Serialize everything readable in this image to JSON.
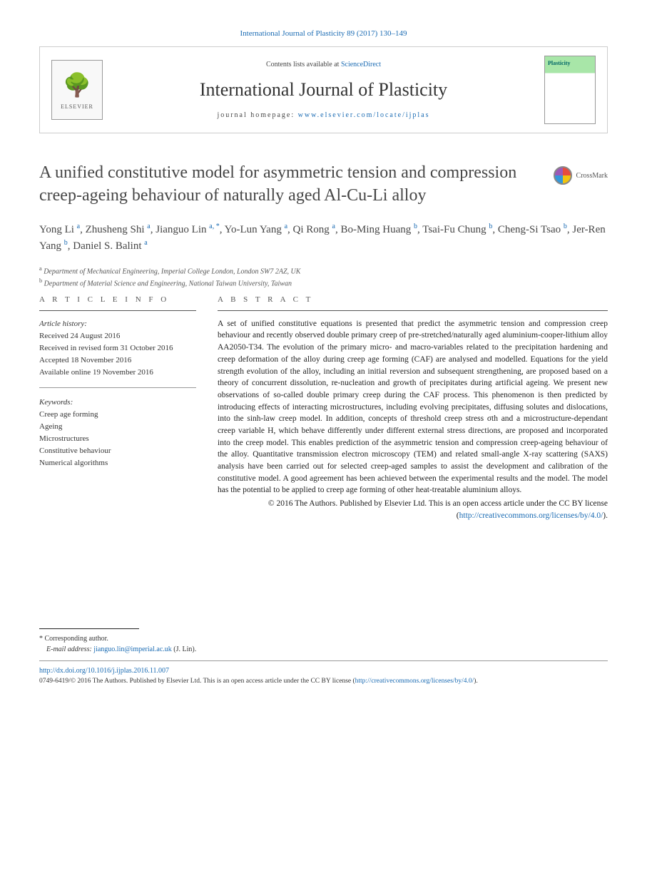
{
  "header": {
    "citation": "International Journal of Plasticity 89 (2017) 130–149",
    "contents_prefix": "Contents lists available at ",
    "contents_link": "ScienceDirect",
    "journal_title": "International Journal of Plasticity",
    "homepage_prefix": "journal homepage: ",
    "homepage_url": "www.elsevier.com/locate/ijplas",
    "elsevier_label": "ELSEVIER",
    "cover_label": "Plasticity"
  },
  "article": {
    "title": "A unified constitutive model for asymmetric tension and compression creep-ageing behaviour of naturally aged Al-Cu-Li alloy",
    "crossmark_label": "CrossMark"
  },
  "authors": [
    {
      "name": "Yong Li",
      "aff": "a"
    },
    {
      "name": "Zhusheng Shi",
      "aff": "a"
    },
    {
      "name": "Jianguo Lin",
      "aff": "a, *"
    },
    {
      "name": "Yo-Lun Yang",
      "aff": "a"
    },
    {
      "name": "Qi Rong",
      "aff": "a"
    },
    {
      "name": "Bo-Ming Huang",
      "aff": "b"
    },
    {
      "name": "Tsai-Fu Chung",
      "aff": "b"
    },
    {
      "name": "Cheng-Si Tsao",
      "aff": "b"
    },
    {
      "name": "Jer-Ren Yang",
      "aff": "b"
    },
    {
      "name": "Daniel S. Balint",
      "aff": "a"
    }
  ],
  "affiliations": [
    {
      "sup": "a",
      "text": "Department of Mechanical Engineering, Imperial College London, London SW7 2AZ, UK"
    },
    {
      "sup": "b",
      "text": "Department of Material Science and Engineering, National Taiwan University, Taiwan"
    }
  ],
  "article_info": {
    "heading": "A R T I C L E   I N F O",
    "history_label": "Article history:",
    "history": [
      "Received 24 August 2016",
      "Received in revised form 31 October 2016",
      "Accepted 18 November 2016",
      "Available online 19 November 2016"
    ],
    "keywords_label": "Keywords:",
    "keywords": [
      "Creep age forming",
      "Ageing",
      "Microstructures",
      "Constitutive behaviour",
      "Numerical algorithms"
    ]
  },
  "abstract": {
    "heading": "A B S T R A C T",
    "text": "A set of unified constitutive equations is presented that predict the asymmetric tension and compression creep behaviour and recently observed double primary creep of pre-stretched/naturally aged aluminium-cooper-lithium alloy AA2050-T34. The evolution of the primary micro- and macro-variables related to the precipitation hardening and creep deformation of the alloy during creep age forming (CAF) are analysed and modelled. Equations for the yield strength evolution of the alloy, including an initial reversion and subsequent strengthening, are proposed based on a theory of concurrent dissolution, re-nucleation and growth of precipitates during artificial ageing. We present new observations of so-called double primary creep during the CAF process. This phenomenon is then predicted by introducing effects of interacting microstructures, including evolving precipitates, diffusing solutes and dislocations, into the sinh-law creep model. In addition, concepts of threshold creep stress σth and a microstructure-dependant creep variable H, which behave differently under different external stress directions, are proposed and incorporated into the creep model. This enables prediction of the asymmetric tension and compression creep-ageing behaviour of the alloy. Quantitative transmission electron microscopy (TEM) and related small-angle X-ray scattering (SAXS) analysis have been carried out for selected creep-aged samples to assist the development and calibration of the constitutive model. A good agreement has been achieved between the experimental results and the model. The model has the potential to be applied to creep age forming of other heat-treatable aluminium alloys.",
    "copyright": "© 2016 The Authors. Published by Elsevier Ltd. This is an open access article under the CC BY license (",
    "license_url": "http://creativecommons.org/licenses/by/4.0/",
    "copyright_close": ")."
  },
  "footer": {
    "corresponding_label": "* Corresponding author.",
    "email_label": "E-mail address:",
    "email": "jianguo.lin@imperial.ac.uk",
    "email_name": "(J. Lin).",
    "doi": "http://dx.doi.org/10.1016/j.ijplas.2016.11.007",
    "issn_line_1": "0749-6419/© 2016 The Authors. Published by Elsevier Ltd. This is an open access article under the CC BY license (",
    "issn_url": "http://creativecommons.org/licenses/by/4.0/",
    "issn_line_2": ")."
  },
  "colors": {
    "link": "#1a6bb3",
    "text": "#1a1a1a",
    "muted": "#555555",
    "rule": "#999999"
  }
}
